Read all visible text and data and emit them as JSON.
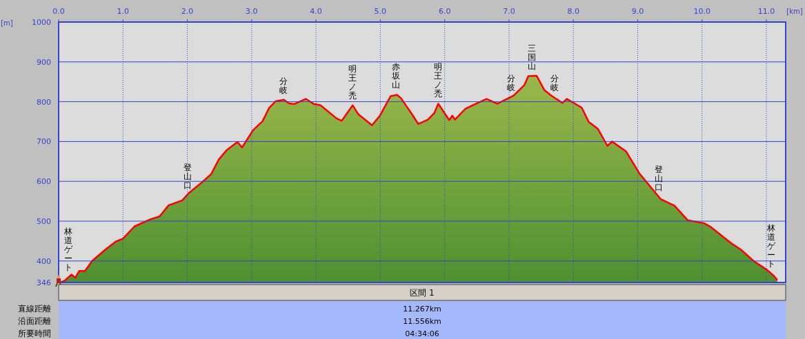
{
  "chart_data": {
    "type": "area",
    "xlabel": "[km]",
    "ylabel": "[m]",
    "x": [
      0.02,
      0.09,
      0.2,
      0.26,
      0.32,
      0.41,
      0.52,
      0.73,
      0.89,
      1.0,
      1.18,
      1.43,
      1.57,
      1.71,
      1.92,
      2.02,
      2.23,
      2.37,
      2.49,
      2.61,
      2.78,
      2.85,
      3.02,
      3.17,
      3.27,
      3.37,
      3.5,
      3.58,
      3.66,
      3.84,
      3.97,
      4.07,
      4.32,
      4.4,
      4.57,
      4.66,
      4.87,
      4.99,
      5.16,
      5.26,
      5.32,
      5.49,
      5.59,
      5.74,
      5.84,
      5.9,
      6.07,
      6.12,
      6.16,
      6.32,
      6.49,
      6.65,
      6.82,
      7.07,
      7.24,
      7.3,
      7.43,
      7.55,
      7.66,
      7.83,
      7.9,
      8.13,
      8.24,
      8.38,
      8.53,
      8.6,
      8.82,
      9.03,
      9.36,
      9.57,
      9.78,
      10.03,
      10.14,
      10.45,
      10.6,
      10.81,
      11.0,
      11.12,
      11.17
    ],
    "series": [
      {
        "color": "#ff0000",
        "values": [
          346,
          350,
          366,
          358,
          375,
          375,
          400,
          429,
          449,
          456,
          487,
          505,
          512,
          540,
          552,
          570,
          598,
          618,
          655,
          678,
          699,
          685,
          728,
          751,
          784,
          801,
          805,
          796,
          794,
          807,
          794,
          791,
          758,
          752,
          791,
          768,
          741,
          764,
          814,
          817,
          809,
          769,
          744,
          755,
          772,
          795,
          754,
          765,
          755,
          782,
          795,
          807,
          795,
          815,
          842,
          864,
          865,
          829,
          815,
          797,
          807,
          785,
          749,
          732,
          689,
          700,
          675,
          619,
          555,
          539,
          502,
          495,
          485,
          445,
          429,
          399,
          379,
          362,
          352
        ]
      }
    ],
    "xlim": [
      0,
      11.3
    ],
    "ylim": [
      346,
      1000
    ],
    "xticks": [
      {
        "value": 0,
        "label": "0.0"
      },
      {
        "value": 1,
        "label": "1.0"
      },
      {
        "value": 2,
        "label": "2.0"
      },
      {
        "value": 3,
        "label": "3.0"
      },
      {
        "value": 4,
        "label": "4.0"
      },
      {
        "value": 5,
        "label": "5.0"
      },
      {
        "value": 6,
        "label": "6.0"
      },
      {
        "value": 7,
        "label": "7.0"
      },
      {
        "value": 8,
        "label": "8.0"
      },
      {
        "value": 9,
        "label": "9.0"
      },
      {
        "value": 10,
        "label": "10.0"
      },
      {
        "value": 11,
        "label": "11.0"
      }
    ],
    "yticks": [
      346,
      400,
      500,
      600,
      700,
      800,
      900,
      1000
    ],
    "grid": true,
    "annotations": [
      {
        "text": "林道ゲート",
        "x": 0.15,
        "y": 360
      },
      {
        "text": "登山口",
        "x": 2.0,
        "y": 566
      },
      {
        "text": "分岐",
        "x": 3.5,
        "y": 805
      },
      {
        "text": "明王ノ禿",
        "x": 4.57,
        "y": 791
      },
      {
        "text": "赤坂山",
        "x": 5.24,
        "y": 818
      },
      {
        "text": "明王ノ禿",
        "x": 5.9,
        "y": 795
      },
      {
        "text": "分岐",
        "x": 7.03,
        "y": 812
      },
      {
        "text": "三国山",
        "x": 7.36,
        "y": 865
      },
      {
        "text": "分岐",
        "x": 7.71,
        "y": 812
      },
      {
        "text": "登山口",
        "x": 9.33,
        "y": 560
      },
      {
        "text": "林道ゲート",
        "x": 11.08,
        "y": 368
      },
      "区間 1",
      "直線距離",
      "11.267km",
      "沿面距離",
      "11.556km",
      "所要時間",
      "04:34:06"
    ]
  }
}
